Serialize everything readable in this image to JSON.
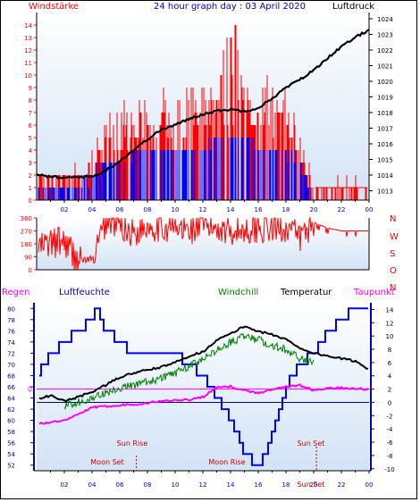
{
  "header": {
    "title": "24 hour graph day : 03 April 2020",
    "left_label": "Windstärke",
    "right_label": "Luftdruck"
  },
  "colors": {
    "bg_top": "#ffffff",
    "bg_bottom": "#d2e3f6",
    "wind_red": "#ff0000",
    "gust_blue": "#0000ff",
    "pressure": "#000000",
    "humidity": "#0000ff",
    "temperature": "#000000",
    "windchill": "#008000",
    "dewpoint": "#ff00ff",
    "axis_blue": "#0000cc",
    "sun_text": "#cc0000",
    "header_text": "#0000cc"
  },
  "chart_data": [
    {
      "type": "line",
      "name": "wind-pressure",
      "x_ticks": [
        "02",
        "04",
        "06",
        "08",
        "10",
        "12",
        "14",
        "16",
        "18",
        "20",
        "22",
        "00"
      ],
      "left_axis": {
        "label": "Windstärke",
        "ticks": [
          0,
          1,
          2,
          3,
          4,
          5,
          6,
          7,
          8,
          9,
          10,
          11,
          12,
          13,
          14
        ],
        "ylim": [
          0,
          15
        ]
      },
      "right_axis": {
        "label": "Luftdruck",
        "ticks": [
          1013,
          1014,
          1015,
          1016,
          1017,
          1018,
          1019,
          1020,
          1021,
          1022,
          1023,
          1024
        ],
        "ylim": [
          1012.4,
          1024.4
        ]
      },
      "series": [
        {
          "name": "Luftdruck",
          "x": [
            0,
            1,
            2,
            3,
            4,
            5,
            6,
            7,
            8,
            9,
            10,
            11,
            12,
            13,
            14,
            15,
            16,
            17,
            18,
            19,
            20,
            21,
            22,
            23,
            24
          ],
          "values": [
            1014.0,
            1013.9,
            1013.8,
            1013.9,
            1013.9,
            1014.3,
            1014.9,
            1015.6,
            1016.3,
            1016.9,
            1017.2,
            1017.6,
            1017.9,
            1018.1,
            1018.2,
            1018.1,
            1018.3,
            1018.9,
            1019.6,
            1020.1,
            1020.7,
            1021.5,
            1022.2,
            1022.8,
            1023.3
          ]
        }
      ],
      "wind_envelope": {
        "x": [
          0,
          1,
          2,
          3,
          4,
          5,
          6,
          7,
          8,
          9,
          10,
          11,
          12,
          13,
          14,
          15,
          16,
          17,
          18,
          19,
          20,
          21,
          22,
          23,
          24
        ],
        "mean": [
          1,
          1,
          1,
          1,
          2,
          3,
          3,
          4,
          4,
          4,
          4,
          4,
          4,
          5,
          5,
          5,
          4,
          4,
          4,
          3,
          0,
          0,
          0,
          0,
          0
        ],
        "gust": [
          2,
          2,
          2,
          2,
          4,
          6,
          7,
          7,
          8,
          8,
          8,
          9,
          9,
          9,
          14,
          9,
          9,
          9,
          9,
          6,
          1,
          1,
          1,
          1,
          1
        ]
      }
    },
    {
      "type": "line",
      "name": "wind-direction",
      "right_labels": [
        "N",
        "W",
        "S",
        "O",
        "N"
      ],
      "left_axis": {
        "ticks": [
          0,
          90,
          180,
          270,
          360
        ],
        "ylim": [
          0,
          360
        ]
      },
      "series": [
        {
          "name": "direction",
          "x": [
            0,
            1,
            2,
            3,
            4,
            5,
            6,
            7,
            8,
            9,
            10,
            11,
            12,
            13,
            14,
            15,
            16,
            17,
            18,
            19,
            20,
            21,
            22,
            23,
            24
          ],
          "values": [
            150,
            180,
            200,
            60,
            60,
            330,
            320,
            250,
            310,
            300,
            280,
            280,
            300,
            300,
            280,
            270,
            300,
            280,
            300,
            220,
            330,
            290,
            270,
            270,
            270
          ]
        }
      ]
    },
    {
      "type": "line",
      "name": "temperature-humidity",
      "legend": [
        "Regen",
        "Luftfeuchte",
        "Windchill",
        "Temperatur",
        "Taupunkt"
      ],
      "x_ticks": [
        "02",
        "04",
        "06",
        "08",
        "10",
        "12",
        "14",
        "16",
        "18",
        "20",
        "22",
        "00"
      ],
      "left_axis": {
        "ticks": [
          52,
          54,
          56,
          58,
          60,
          62,
          64,
          66,
          68,
          70,
          72,
          74,
          76,
          78,
          80
        ],
        "ylim": [
          51,
          81
        ]
      },
      "right_axis": {
        "ticks": [
          -10,
          -8,
          -6,
          -4,
          -2,
          0,
          2,
          4,
          6,
          8,
          10,
          12,
          14
        ],
        "ylim": [
          -10.3,
          15.0
        ]
      },
      "rain_marker": 0,
      "annotations": [
        {
          "label": "Sun Rise",
          "hour": 7.2
        },
        {
          "label": "Moon Set",
          "hour": 6.8
        },
        {
          "label": "Moon Rise",
          "hour": 14.6
        },
        {
          "label": "Sun Set",
          "hour": 20.2
        },
        {
          "label": "Sun Set",
          "hour": 20.2
        }
      ],
      "series": [
        {
          "name": "Luftfeuchte",
          "x": [
            0,
            0.5,
            1,
            2,
            3,
            4,
            4.3,
            5,
            6,
            7,
            8,
            9,
            10,
            11,
            12,
            13,
            13.5,
            14,
            14.5,
            15,
            15.5,
            16,
            16.5,
            17,
            18,
            19,
            20,
            21,
            22,
            23,
            24
          ],
          "values": [
            68,
            70,
            72,
            74,
            76,
            78,
            80,
            76,
            74,
            72,
            72,
            72,
            72,
            70,
            68,
            64,
            62,
            60,
            58,
            54,
            53,
            52,
            54,
            58,
            66,
            70,
            72,
            76,
            78,
            80,
            80
          ]
        },
        {
          "name": "Temperatur",
          "x": [
            0,
            1,
            2,
            3,
            4,
            5,
            6,
            7,
            8,
            9,
            10,
            11,
            12,
            13,
            14,
            15,
            16,
            17,
            18,
            19,
            20,
            21,
            22,
            23,
            24
          ],
          "values": [
            0.5,
            1.0,
            0.2,
            0.8,
            1.6,
            2.6,
            3.8,
            4.4,
            4.9,
            5.3,
            6.0,
            7.0,
            7.6,
            9.4,
            10.3,
            11.5,
            10.7,
            10.2,
            9.5,
            8.2,
            7.4,
            7.0,
            6.6,
            6.2,
            5.0
          ]
        },
        {
          "name": "Windchill",
          "x": [
            2,
            3,
            4,
            5,
            6,
            7,
            8,
            9,
            10,
            11,
            12,
            13,
            14,
            15,
            16,
            17,
            18,
            19,
            20
          ],
          "values": [
            0.2,
            0.6,
            1.2,
            2.0,
            2.8,
            3.2,
            3.8,
            4.2,
            5.0,
            6.0,
            7.0,
            8.4,
            9.6,
            10.6,
            10.0,
            9.2,
            8.5,
            7.2,
            6.5
          ]
        },
        {
          "name": "Taupunkt",
          "x": [
            0,
            1,
            2,
            3,
            4,
            5,
            6,
            7,
            8,
            9,
            10,
            11,
            12,
            13,
            14,
            15,
            16,
            17,
            18,
            19,
            20,
            21,
            22,
            23,
            24
          ],
          "values": [
            -3.2,
            -3.0,
            -2.8,
            -1.8,
            -0.8,
            -0.6,
            -0.4,
            -0.3,
            -0.1,
            0.2,
            0.3,
            0.4,
            0.8,
            2.2,
            2.4,
            1.8,
            1.4,
            2.0,
            2.3,
            2.6,
            1.8,
            2.1,
            2.2,
            2.1,
            2.0
          ]
        }
      ]
    }
  ]
}
